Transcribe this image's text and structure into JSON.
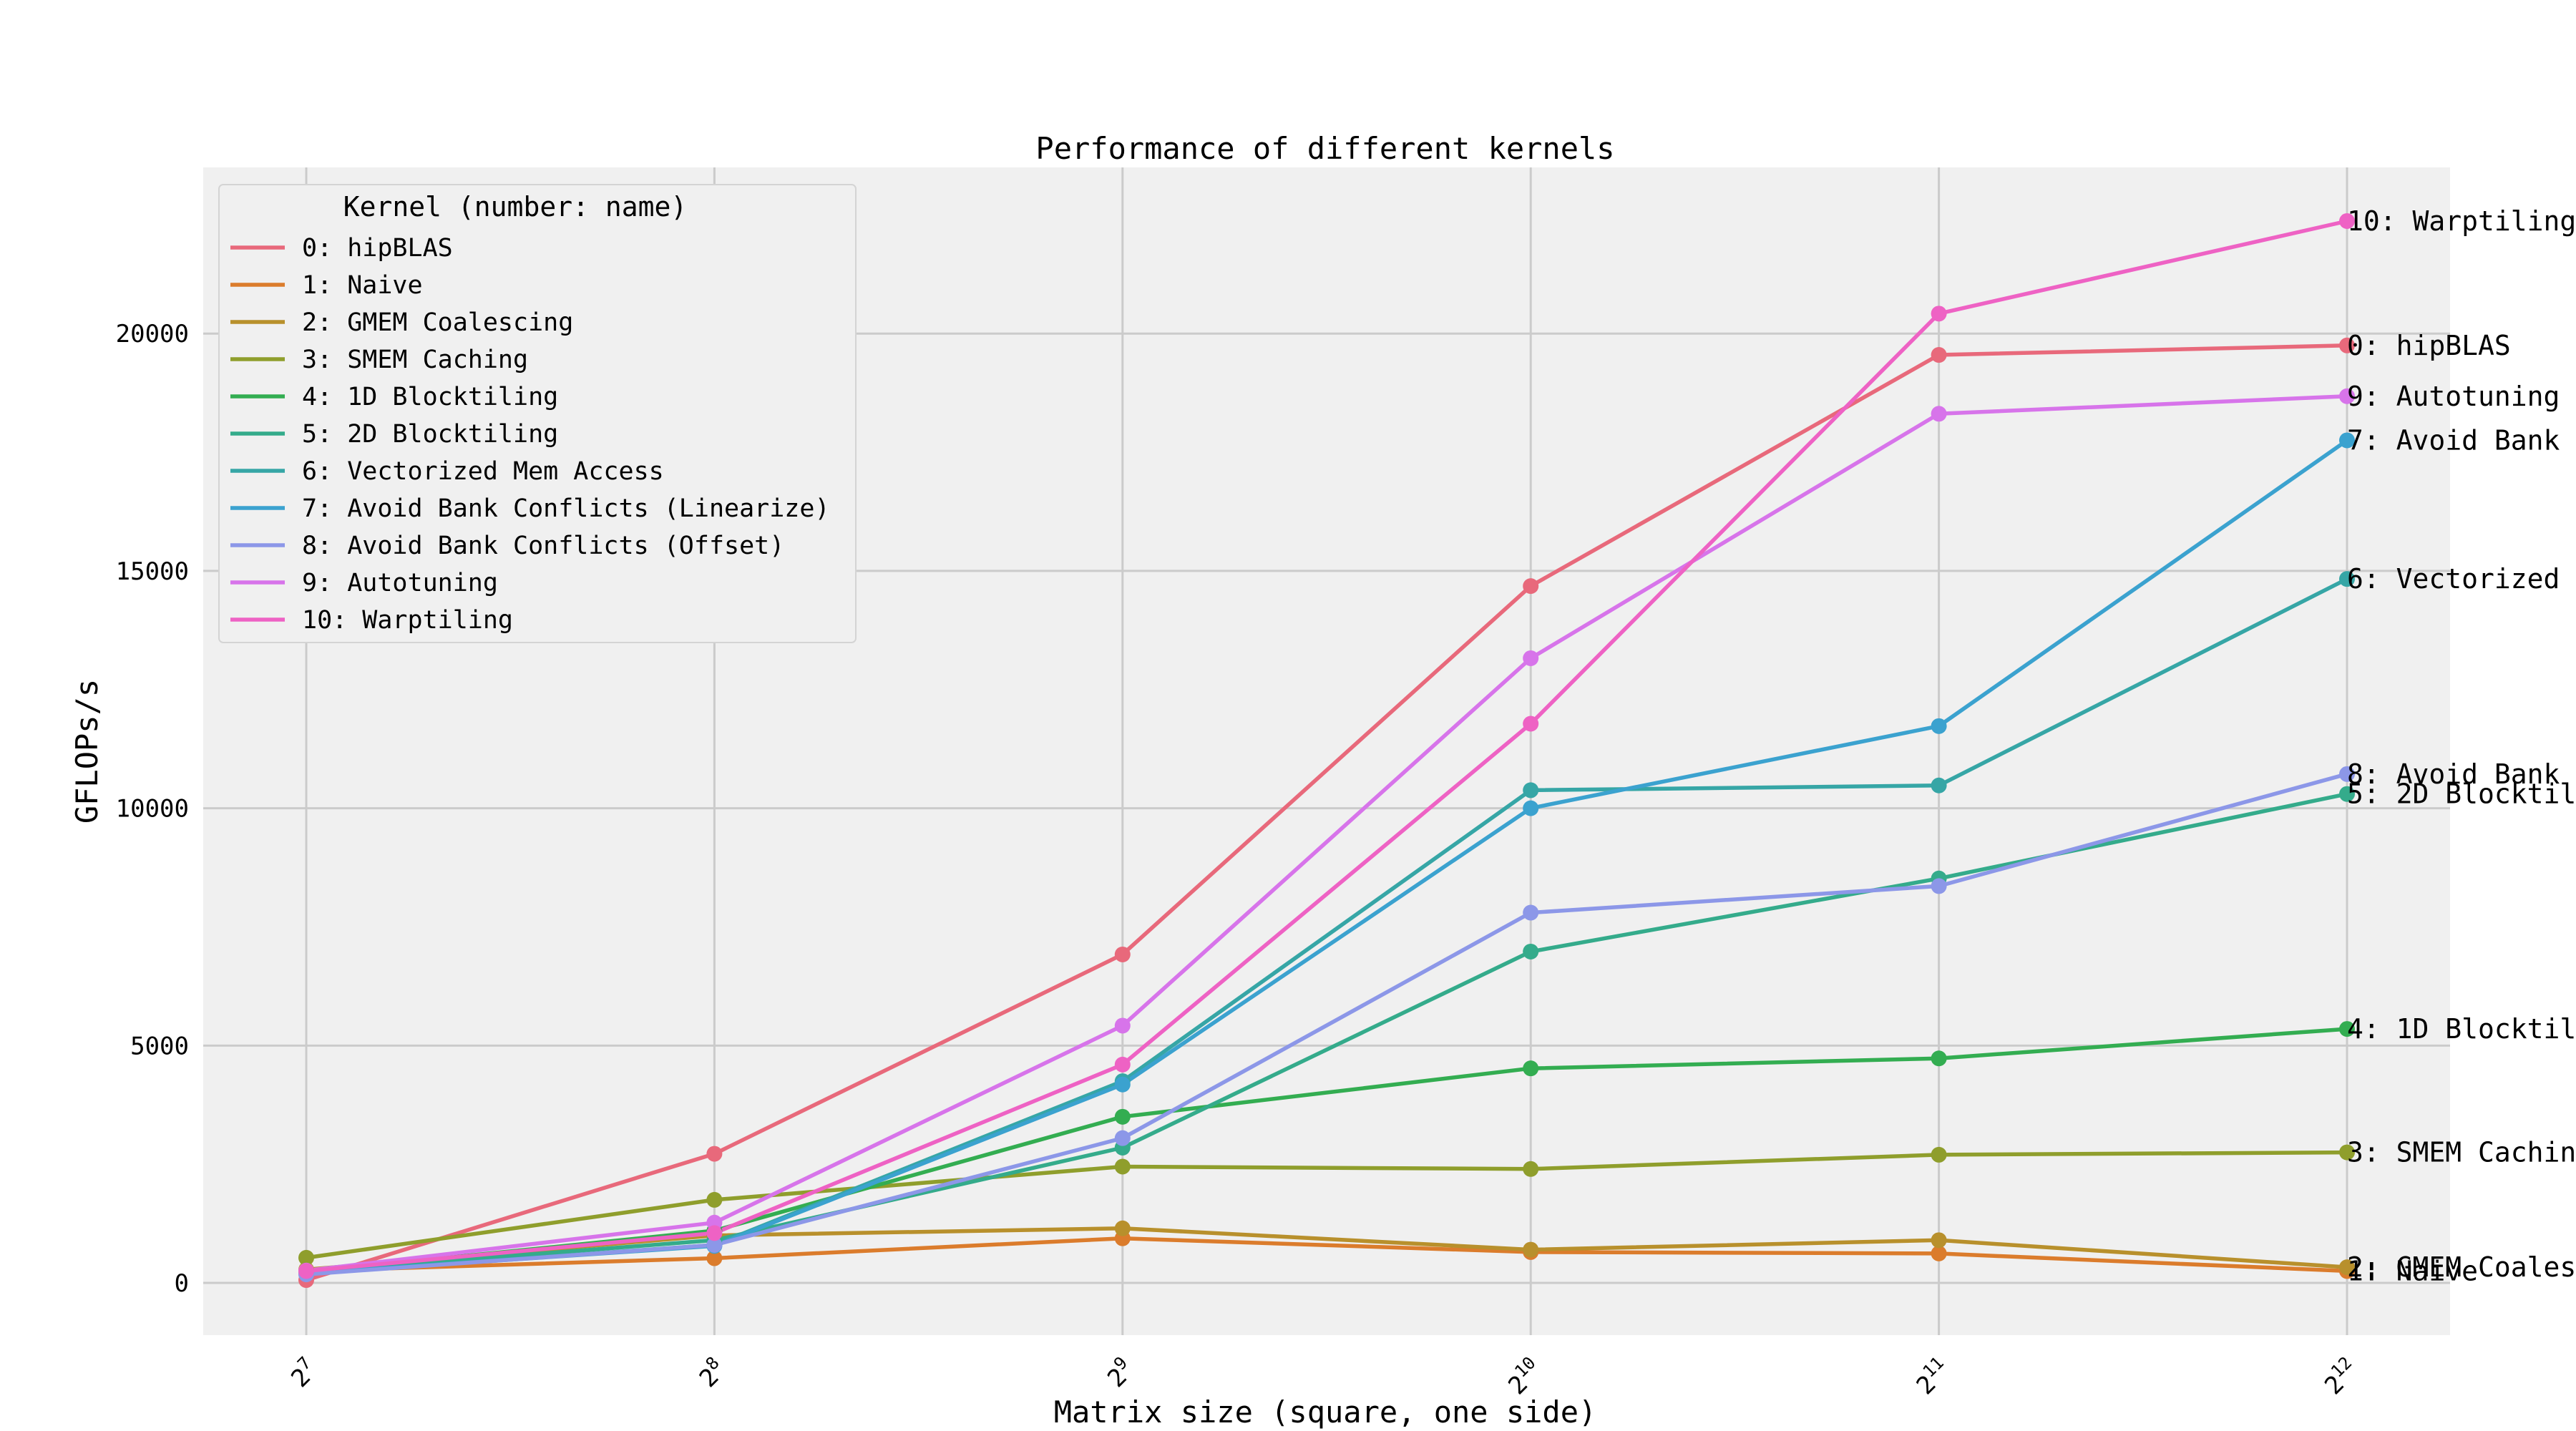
{
  "chart_data": {
    "type": "line",
    "title": "Performance of different kernels",
    "xlabel": "Matrix size (square, one side)",
    "ylabel": "GFLOPs/s",
    "x": [
      128,
      256,
      512,
      1024,
      2048,
      4096
    ],
    "x_tick_labels": [
      {
        "base": "2",
        "exp": "7"
      },
      {
        "base": "2",
        "exp": "8"
      },
      {
        "base": "2",
        "exp": "9"
      },
      {
        "base": "2",
        "exp": "10"
      },
      {
        "base": "2",
        "exp": "11"
      },
      {
        "base": "2",
        "exp": "12"
      }
    ],
    "x_scale": "log2",
    "y_ticks": [
      "0",
      "5000",
      "10000",
      "15000",
      "20000"
    ],
    "ylim": [
      -1100,
      23500
    ],
    "grid": true,
    "background": "#f0f0f0",
    "legend": {
      "title": "Kernel (number: name)",
      "placement": "top-left"
    },
    "series": [
      {
        "name": "0: hipBLAS",
        "end_label": "0: hipBLAS",
        "color": "#e8697b",
        "values": [
          60,
          2720,
          6920,
          14680,
          19550,
          19750
        ]
      },
      {
        "name": "1: Naive",
        "end_label": "1: Naive",
        "color": "#db7c2c",
        "values": [
          250,
          520,
          940,
          650,
          620,
          250
        ]
      },
      {
        "name": "2: GMEM Coalescing",
        "end_label": "2: GMEM Coales",
        "color": "#b8902c",
        "values": [
          280,
          1000,
          1150,
          700,
          900,
          330
        ]
      },
      {
        "name": "3: SMEM Caching",
        "end_label": "3: SMEM Cachin",
        "color": "#8f9e2c",
        "values": [
          530,
          1750,
          2450,
          2400,
          2700,
          2750
        ]
      },
      {
        "name": "4: 1D Blocktiling",
        "end_label": "4: 1D Blocktil",
        "color": "#33ad51",
        "values": [
          230,
          1100,
          3500,
          4520,
          4730,
          5350
        ]
      },
      {
        "name": "5: 2D Blocktiling",
        "end_label": "5: 2D Blocktil",
        "color": "#34ab8b",
        "values": [
          240,
          900,
          2850,
          6980,
          8520,
          10300
        ]
      },
      {
        "name": "6: Vectorized Mem Access",
        "end_label": "6: Vectorized",
        "color": "#36a6a6",
        "values": [
          200,
          800,
          4250,
          10380,
          10480,
          14830
        ]
      },
      {
        "name": "7: Avoid Bank Conflicts (Linearize)",
        "end_label": "7: Avoid Bank",
        "color": "#3ba2cf",
        "values": [
          200,
          780,
          4180,
          10000,
          11730,
          17750
        ]
      },
      {
        "name": "8: Avoid Bank Conflicts (Offset)",
        "end_label": "8: Avoid Bank",
        "color": "#8c97e8",
        "values": [
          180,
          800,
          3050,
          7800,
          8360,
          10720
        ]
      },
      {
        "name": "9: Autotuning",
        "end_label": "9: Autotuning",
        "color": "#d774ea",
        "values": [
          260,
          1270,
          5420,
          13160,
          18310,
          18680
        ]
      },
      {
        "name": "10: Warptiling",
        "end_label": "10: Warptiling",
        "color": "#ee62c4",
        "values": [
          250,
          1050,
          4600,
          11780,
          20420,
          22370
        ]
      }
    ]
  }
}
